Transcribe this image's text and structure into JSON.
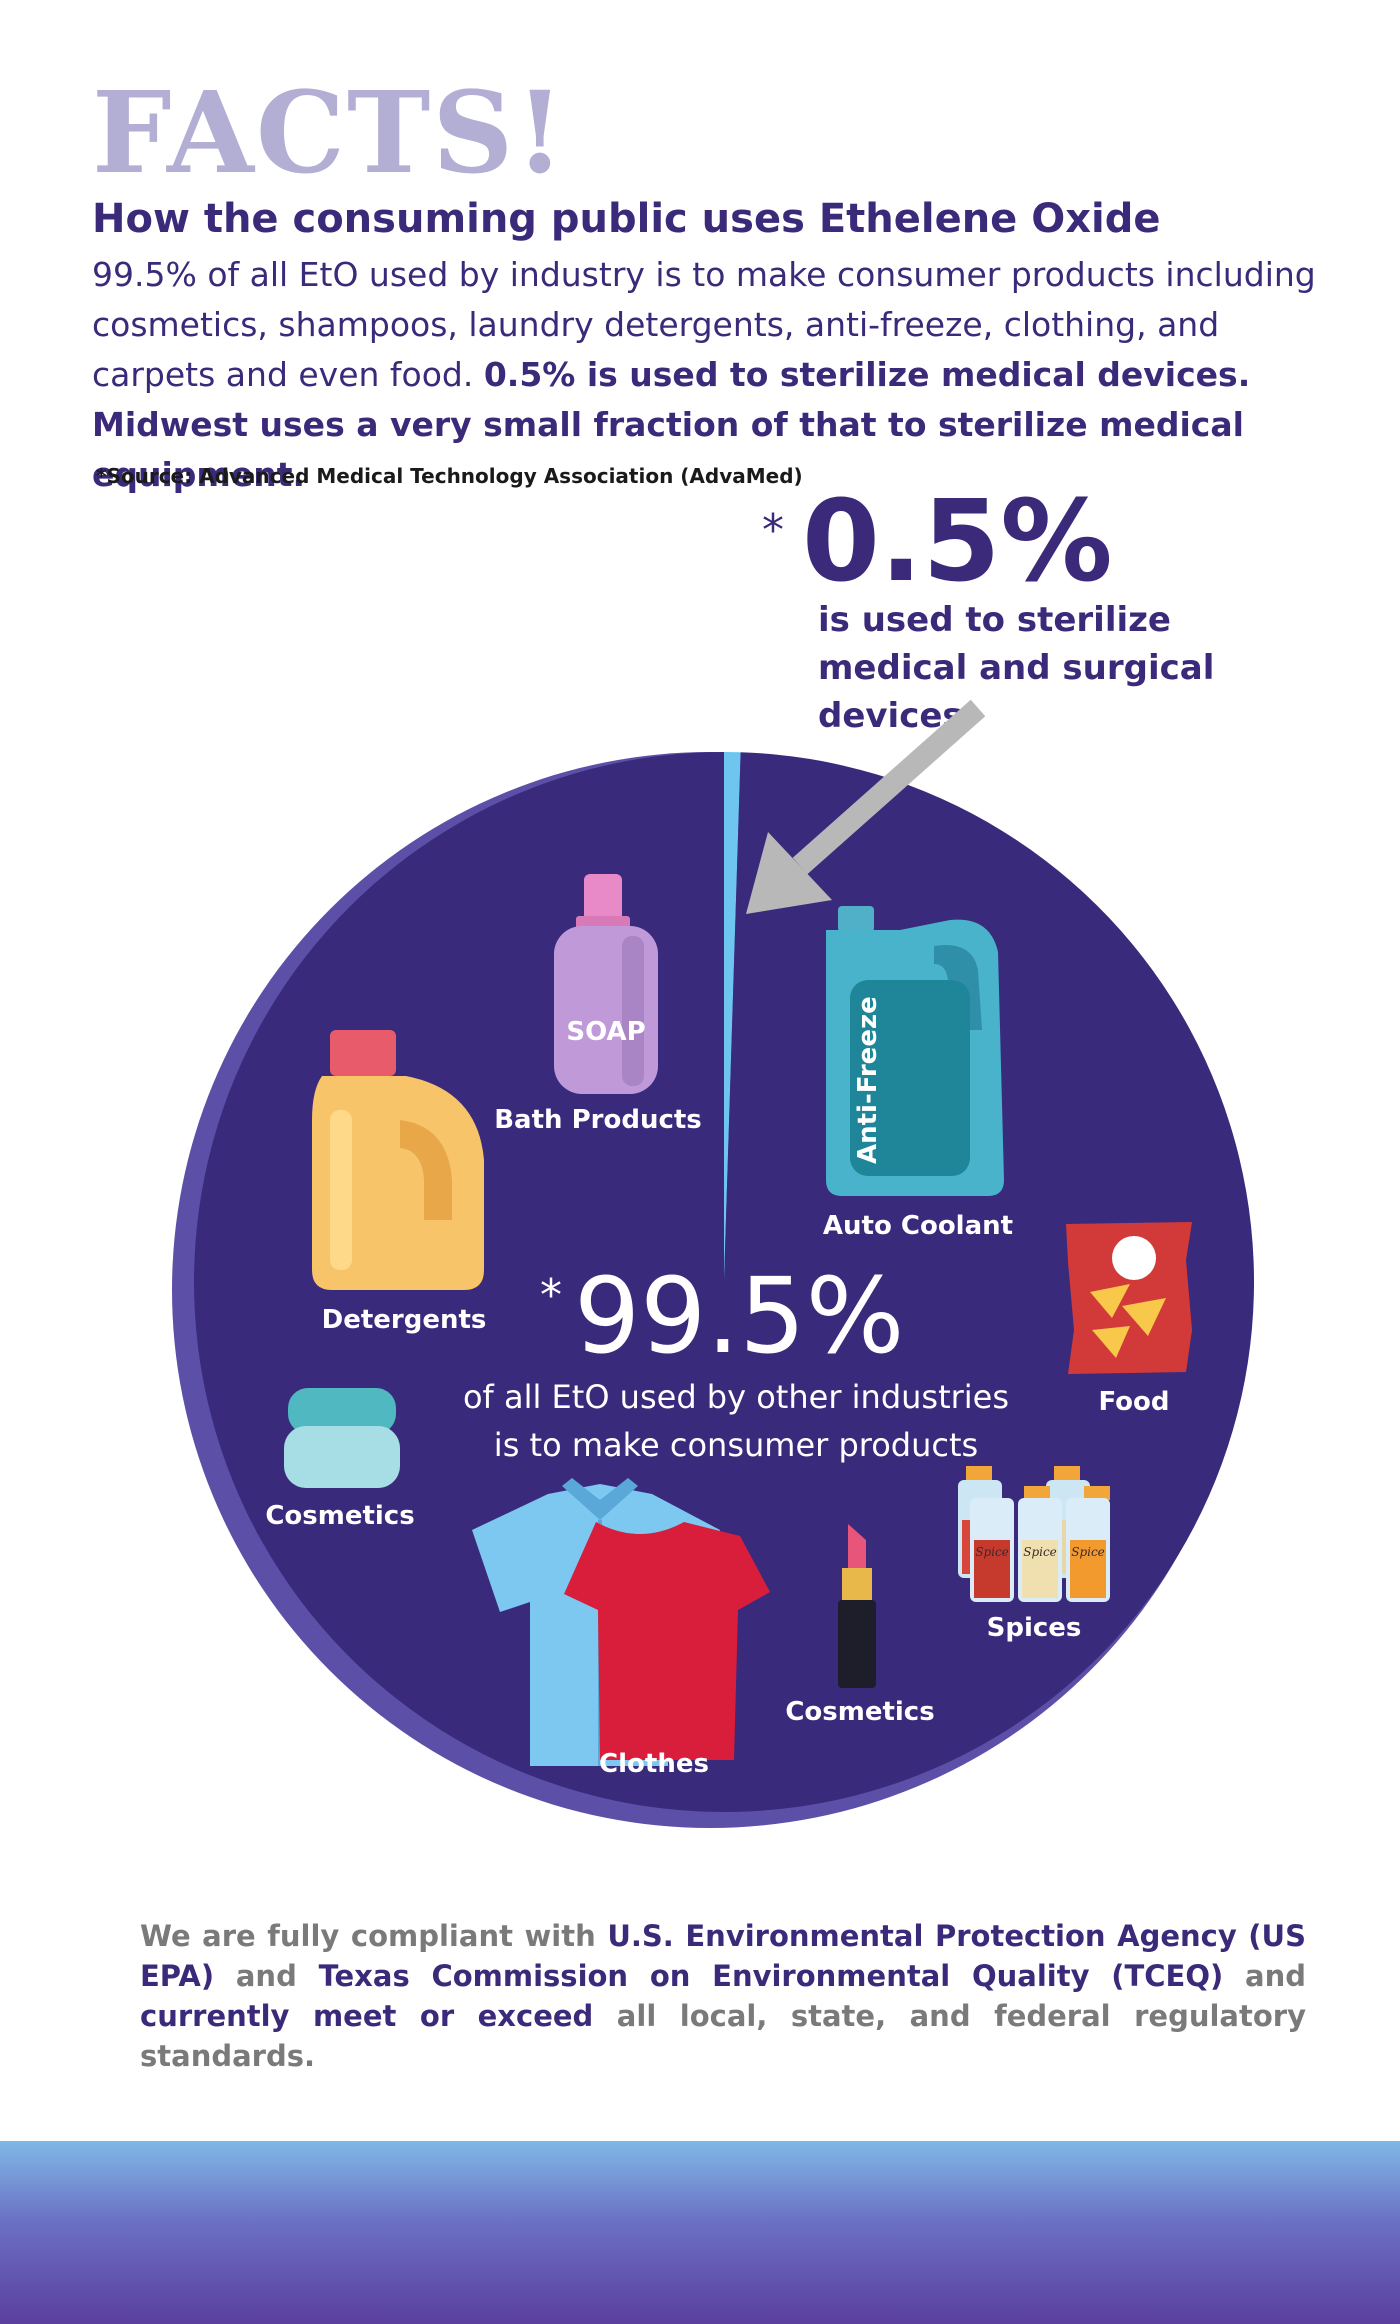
{
  "header": {
    "title": "FACTS!",
    "subtitle": "How the consuming public uses Ethelene Oxide",
    "intro_regular": "99.5% of all EtO used by industry is to make consumer products including cosmetics, shampoos, laundry detergents, anti-freeze, clothing, and carpets and even food. ",
    "intro_bold": "0.5% is used to sterilize medical devices. Midwest uses a very small fraction of that to sterilize medical equipment.",
    "source": "*Source: Advanced Medical Technology Association (AdvaMed)"
  },
  "callout": {
    "star": "*",
    "percent": "0.5%",
    "line1": "is used to sterilize",
    "line2": "medical and surgical devices."
  },
  "chart_data": {
    "type": "pie",
    "slices": [
      {
        "label": "medical and surgical devices",
        "value": 0.5,
        "color": "#6ec6f0"
      },
      {
        "label": "consumer products",
        "value": 99.5,
        "color": "#3a2a7c"
      }
    ]
  },
  "pie_center": {
    "star": "*",
    "percent": "99.5%",
    "line1": "of all EtO used by other industries",
    "line2": "is to make consumer products"
  },
  "products": {
    "soap_text": "SOAP",
    "bath": "Bath Products",
    "antifreeze_text": "Anti-Freeze",
    "auto": "Auto Coolant",
    "detergents": "Detergents",
    "food": "Food",
    "cosmetics_jar": "Cosmetics",
    "spice_text": "Spice",
    "spices": "Spices",
    "clothes": "Clothes",
    "cosmetics_lipstick": "Cosmetics"
  },
  "footer": {
    "p1": "We are fully compliant with ",
    "p2": "U.S. Environmental Protection Agency (US EPA)",
    "p3": " and ",
    "p4": "Texas Commission on Environmental Quality (TCEQ)",
    "p5": " and ",
    "p6": "currently meet or exceed",
    "p7": " all local, state, and federal regulatory standards."
  },
  "colors": {
    "title": "#b3afd4",
    "primary": "#3b2a7a",
    "pie_dark": "#3a2a7c",
    "pie_thin": "#6ec6f0",
    "arrow": "#b8b8b8"
  }
}
